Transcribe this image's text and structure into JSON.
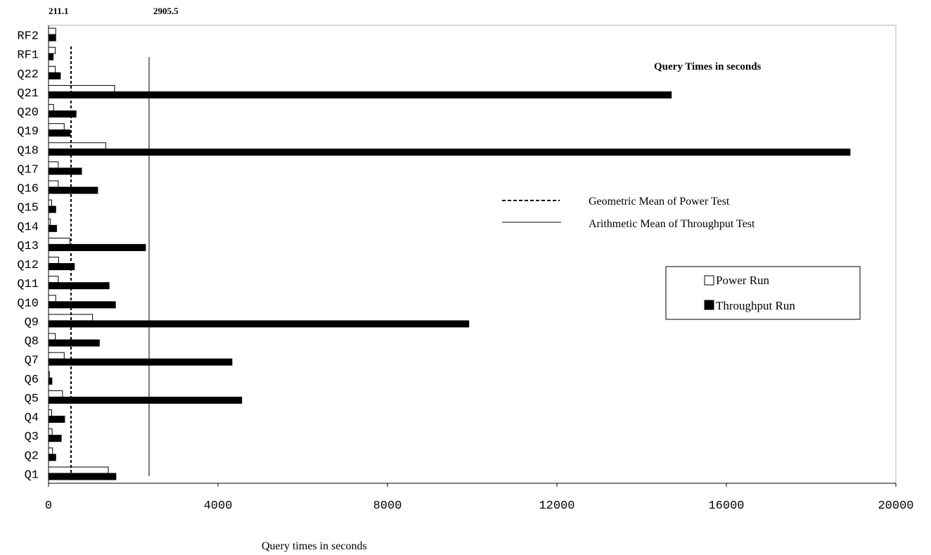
{
  "chart_data": {
    "type": "bar",
    "orientation": "horizontal",
    "title": "Query Times in seconds",
    "xlabel": "Query times in seconds",
    "ylabel": "",
    "xlim": [
      0,
      20000
    ],
    "x_ticks": [
      "0",
      "4000",
      "8000",
      "12000",
      "16000",
      "20000"
    ],
    "categories": [
      "Q1",
      "Q2",
      "Q3",
      "Q4",
      "Q5",
      "Q6",
      "Q7",
      "Q8",
      "Q9",
      "Q10",
      "Q11",
      "Q12",
      "Q13",
      "Q14",
      "Q15",
      "Q16",
      "Q17",
      "Q18",
      "Q19",
      "Q20",
      "Q21",
      "Q22",
      "RF1",
      "RF2"
    ],
    "series": [
      {
        "name": "Power Run",
        "fill": "#ffffff",
        "values": [
          1410,
          95,
          85,
          75,
          330,
          20,
          370,
          160,
          1040,
          170,
          230,
          240,
          500,
          45,
          75,
          230,
          230,
          1350,
          370,
          120,
          1560,
          160,
          160,
          170
        ]
      },
      {
        "name": "Throughput Run",
        "fill": "#000000",
        "values": [
          1590,
          170,
          300,
          380,
          4560,
          80,
          4330,
          1200,
          9920,
          1580,
          1430,
          610,
          2290,
          190,
          170,
          1160,
          780,
          18920,
          510,
          650,
          14700,
          280,
          110,
          170
        ]
      }
    ],
    "reference_lines": [
      {
        "label": "Geometric Mean of Power Test",
        "display_value": "211.1",
        "style": "dashed"
      },
      {
        "label": "Arithmetic Mean of Throughput Test",
        "display_value": "2905.5",
        "style": "solid"
      }
    ],
    "grid": false,
    "legend_position": "right"
  }
}
